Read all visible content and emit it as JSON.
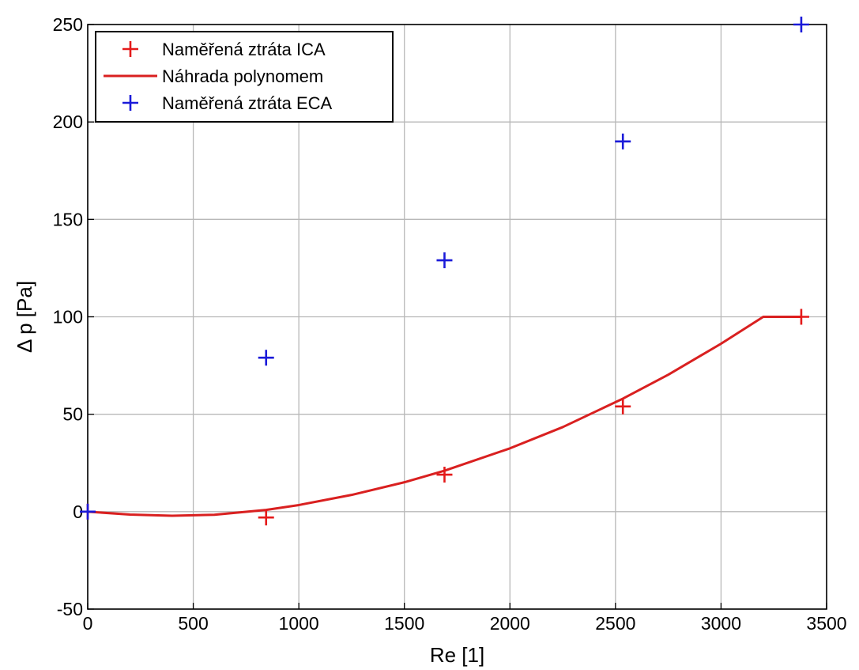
{
  "chart_data": {
    "type": "line",
    "xlabel": "Re [1]",
    "ylabel": "Δ p [Pa]",
    "xlim": [
      0,
      3500
    ],
    "ylim": [
      -50,
      250
    ],
    "xticks": [
      0,
      500,
      1000,
      1500,
      2000,
      2500,
      3000,
      3500
    ],
    "yticks": [
      -50,
      0,
      50,
      100,
      150,
      200,
      250
    ],
    "grid": true,
    "legend_position": "top-left",
    "series": [
      {
        "name": "Naměřená ztráta ICA",
        "kind": "marker",
        "marker": "+",
        "color": "#e41a1a",
        "x": [
          0,
          845,
          1690,
          2535,
          3380
        ],
        "y": [
          0,
          -3,
          19,
          54,
          100
        ]
      },
      {
        "name": "Náhrada polynomem",
        "kind": "line",
        "color": "#d92020",
        "x": [
          0,
          200,
          400,
          600,
          845,
          1000,
          1250,
          1500,
          1690,
          2000,
          2250,
          2535,
          2750,
          3000,
          3200,
          3380
        ],
        "y": [
          0,
          -1.5,
          -2.1,
          -1.6,
          0.9,
          3.4,
          8.6,
          15.1,
          21.0,
          32.5,
          43.4,
          58.0,
          70.3,
          86.2,
          100.0,
          100.0
        ]
      },
      {
        "name": "Naměřená ztráta ECA",
        "kind": "marker",
        "marker": "+",
        "color": "#1a1ad9",
        "x": [
          0,
          845,
          1690,
          2535,
          3380
        ],
        "y": [
          0,
          79,
          129,
          190,
          250
        ]
      }
    ]
  }
}
